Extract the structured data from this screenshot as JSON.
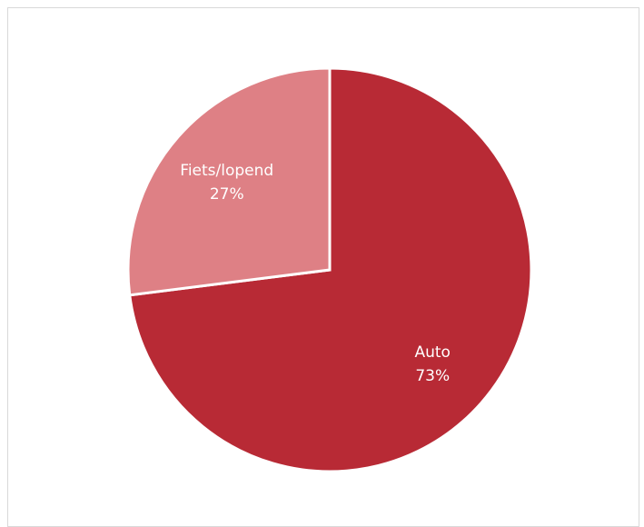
{
  "chart_data": {
    "type": "pie",
    "categories": [
      "Auto",
      "Fiets/lopend"
    ],
    "values": [
      73,
      27
    ],
    "value_labels": [
      "73%",
      "27%"
    ],
    "colors": [
      "#b82a35",
      "#de8085"
    ],
    "slice_border_color": "#ffffff",
    "start_angle_deg": 0,
    "direction": "clockwise",
    "title": "",
    "legend": "none",
    "data_labels": "inside"
  }
}
